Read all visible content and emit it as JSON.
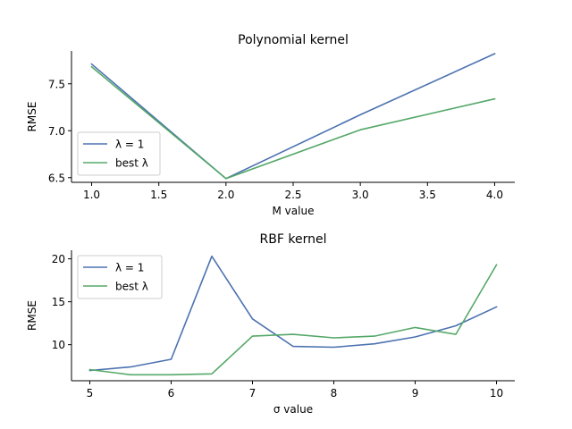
{
  "chart_data": [
    {
      "type": "line",
      "title": "Polynomial kernel",
      "xlabel": "M value",
      "ylabel": "RMSE",
      "xlim": [
        0.85,
        4.15
      ],
      "ylim": [
        6.45,
        7.85
      ],
      "xticks": [
        1.0,
        1.5,
        2.0,
        2.5,
        3.0,
        3.5,
        4.0
      ],
      "xtick_labels": [
        "1.0",
        "1.5",
        "2.0",
        "2.5",
        "3.0",
        "3.5",
        "4.0"
      ],
      "yticks": [
        6.5,
        7.0,
        7.5
      ],
      "ytick_labels": [
        "6.5",
        "7.0",
        "7.5"
      ],
      "legend_position": "lower-left",
      "grid": false,
      "series": [
        {
          "name": "λ = 1",
          "color": "#4c72b0",
          "x": [
            1,
            2,
            3,
            4
          ],
          "y": [
            7.71,
            6.49,
            7.17,
            7.82
          ]
        },
        {
          "name": "best λ",
          "color": "#55a868",
          "x": [
            1,
            2,
            3,
            4
          ],
          "y": [
            7.68,
            6.49,
            7.01,
            7.34
          ]
        }
      ]
    },
    {
      "type": "line",
      "title": "RBF kernel",
      "xlabel": "σ value",
      "ylabel": "RMSE",
      "xlim": [
        4.775,
        10.225
      ],
      "ylim": [
        5.8,
        21.0
      ],
      "xticks": [
        5,
        6,
        7,
        8,
        9,
        10
      ],
      "xtick_labels": [
        "5",
        "6",
        "7",
        "8",
        "9",
        "10"
      ],
      "yticks": [
        10,
        15,
        20
      ],
      "ytick_labels": [
        "10",
        "15",
        "20"
      ],
      "legend_position": "upper-left",
      "grid": false,
      "series": [
        {
          "name": "λ = 1",
          "color": "#4c72b0",
          "x": [
            5,
            5.5,
            6,
            6.5,
            7,
            7.5,
            8,
            8.5,
            9,
            9.5,
            10
          ],
          "y": [
            7.0,
            7.4,
            8.3,
            20.3,
            13.0,
            9.8,
            9.7,
            10.1,
            10.9,
            12.2,
            14.4
          ]
        },
        {
          "name": "best λ",
          "color": "#55a868",
          "x": [
            5,
            5.5,
            6,
            6.5,
            7,
            7.5,
            8,
            8.5,
            9,
            9.5,
            10
          ],
          "y": [
            7.1,
            6.5,
            6.5,
            6.6,
            11.0,
            11.2,
            10.8,
            11.0,
            12.0,
            11.2,
            19.3
          ]
        }
      ]
    }
  ]
}
